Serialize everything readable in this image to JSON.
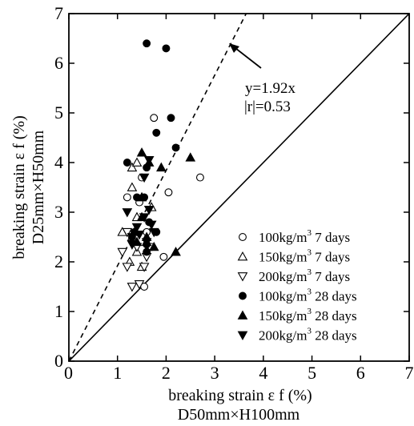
{
  "chart_data": {
    "type": "scatter",
    "xlim": [
      0,
      7
    ],
    "ylim": [
      0,
      7
    ],
    "xticks": [
      "0",
      "1",
      "2",
      "3",
      "4",
      "5",
      "6",
      "7"
    ],
    "yticks": [
      "0",
      "1",
      "2",
      "3",
      "4",
      "5",
      "6",
      "7"
    ],
    "xlabel_line1": "breaking strain ε f (%)",
    "xlabel_line2": "D50mm×H100mm",
    "ylabel_line1": "breaking strain ε f (%)",
    "ylabel_line2": "D25mm×H50mm",
    "grid": false,
    "legend_position": "bottom-right",
    "annotation": {
      "equation": "y=1.92x",
      "correlation": "|r|=0.53"
    },
    "reference_lines": [
      {
        "kind": "fit",
        "style": "dashed",
        "slope": 1.92
      },
      {
        "kind": "equality",
        "style": "solid",
        "slope": 1
      }
    ],
    "series": [
      {
        "name": "100kg/m3 7 days",
        "legend_main": "100kg/m",
        "legend_sup": "3",
        "legend_tail": " 7 days",
        "marker": "open-circle",
        "points": [
          [
            1.75,
            4.9
          ],
          [
            2.7,
            3.7
          ],
          [
            2.05,
            3.4
          ],
          [
            1.2,
            3.3
          ],
          [
            1.45,
            3.2
          ],
          [
            1.5,
            3.7
          ],
          [
            1.6,
            2.6
          ],
          [
            1.7,
            2.3
          ],
          [
            1.95,
            2.1
          ],
          [
            1.55,
            1.5
          ]
        ]
      },
      {
        "name": "150kg/m3 7 days",
        "legend_main": "150kg/m",
        "legend_sup": "3",
        "legend_tail": " 7 days",
        "marker": "open-triangle-up",
        "points": [
          [
            1.3,
            3.9
          ],
          [
            1.4,
            4.0
          ],
          [
            1.3,
            3.5
          ],
          [
            1.5,
            3.3
          ],
          [
            1.7,
            3.1
          ],
          [
            1.4,
            2.9
          ],
          [
            1.1,
            2.6
          ],
          [
            1.3,
            2.5
          ],
          [
            1.6,
            2.4
          ],
          [
            1.4,
            2.2
          ],
          [
            1.25,
            2.0
          ],
          [
            1.5,
            1.9
          ]
        ]
      },
      {
        "name": "200kg/m3 7 days",
        "legend_main": "200kg/m",
        "legend_sup": "3",
        "legend_tail": " 7 days",
        "marker": "open-triangle-down",
        "points": [
          [
            1.2,
            2.6
          ],
          [
            1.4,
            2.3
          ],
          [
            1.1,
            2.2
          ],
          [
            1.2,
            1.9
          ],
          [
            1.55,
            1.9
          ],
          [
            1.3,
            1.5
          ],
          [
            1.45,
            1.55
          ],
          [
            1.6,
            2.1
          ]
        ]
      },
      {
        "name": "100kg/m3 28 days",
        "legend_main": "100kg/m",
        "legend_sup": "3",
        "legend_tail": " 28 days",
        "marker": "filled-circle",
        "points": [
          [
            1.6,
            6.4
          ],
          [
            2.0,
            6.3
          ],
          [
            2.1,
            4.9
          ],
          [
            1.8,
            4.6
          ],
          [
            2.2,
            4.3
          ],
          [
            1.2,
            4.0
          ],
          [
            1.6,
            3.9
          ],
          [
            1.4,
            3.3
          ],
          [
            1.55,
            3.3
          ],
          [
            1.65,
            2.8
          ],
          [
            1.35,
            2.6
          ],
          [
            1.8,
            2.6
          ],
          [
            1.6,
            2.35
          ],
          [
            1.6,
            2.2
          ],
          [
            1.3,
            2.5
          ]
        ]
      },
      {
        "name": "150kg/m3 28 days",
        "legend_main": "150kg/m",
        "legend_sup": "3",
        "legend_tail": " 28 days",
        "marker": "filled-triangle-up",
        "points": [
          [
            1.5,
            4.2
          ],
          [
            1.65,
            4.0
          ],
          [
            2.5,
            4.1
          ],
          [
            1.9,
            3.9
          ],
          [
            1.5,
            3.3
          ],
          [
            1.5,
            2.9
          ],
          [
            1.35,
            2.6
          ],
          [
            1.6,
            2.5
          ],
          [
            1.75,
            2.3
          ],
          [
            2.2,
            2.2
          ],
          [
            1.4,
            2.4
          ]
        ]
      },
      {
        "name": "200kg/m3 28 days",
        "legend_main": "200kg/m",
        "legend_sup": "3",
        "legend_tail": " 28 days",
        "marker": "filled-triangle-down",
        "points": [
          [
            1.65,
            4.05
          ],
          [
            1.55,
            3.7
          ],
          [
            1.2,
            3.0
          ],
          [
            1.65,
            3.05
          ],
          [
            1.55,
            2.9
          ],
          [
            1.7,
            2.75
          ],
          [
            1.4,
            2.7
          ],
          [
            1.3,
            2.5
          ],
          [
            1.6,
            2.4
          ],
          [
            1.75,
            2.6
          ],
          [
            1.45,
            2.55
          ],
          [
            1.3,
            2.35
          ]
        ]
      }
    ]
  }
}
